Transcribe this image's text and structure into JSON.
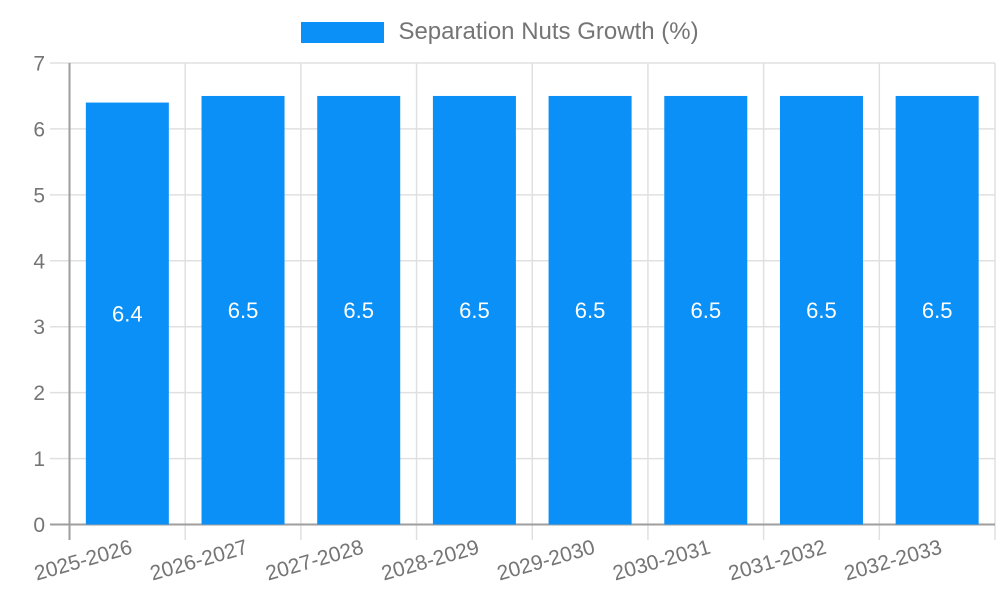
{
  "chart_data": {
    "type": "bar",
    "title": "Separation Nuts Growth (%)",
    "legend": {
      "label": "Separation Nuts Growth (%)",
      "position": "top"
    },
    "categories": [
      "2025-2026",
      "2026-2027",
      "2027-2028",
      "2028-2029",
      "2029-2030",
      "2030-2031",
      "2031-2032",
      "2032-2033"
    ],
    "values": [
      6.4,
      6.5,
      6.5,
      6.5,
      6.5,
      6.5,
      6.5,
      6.5
    ],
    "bar_labels": [
      "6.4",
      "6.5",
      "6.5",
      "6.5",
      "6.5",
      "6.5",
      "6.5",
      "6.5"
    ],
    "xlabel": "",
    "ylabel": "",
    "ylim": [
      0,
      7
    ],
    "yticks": [
      0,
      1,
      2,
      3,
      4,
      5,
      6,
      7
    ],
    "grid": true,
    "x_label_rotation_deg": -16,
    "colors": {
      "bar": "#0a90f6",
      "bar_label": "#ffffff",
      "axis_text": "#757575",
      "grid_line": "#e0e0e0",
      "axis_line": "#9e9e9e",
      "background": "#ffffff"
    }
  }
}
